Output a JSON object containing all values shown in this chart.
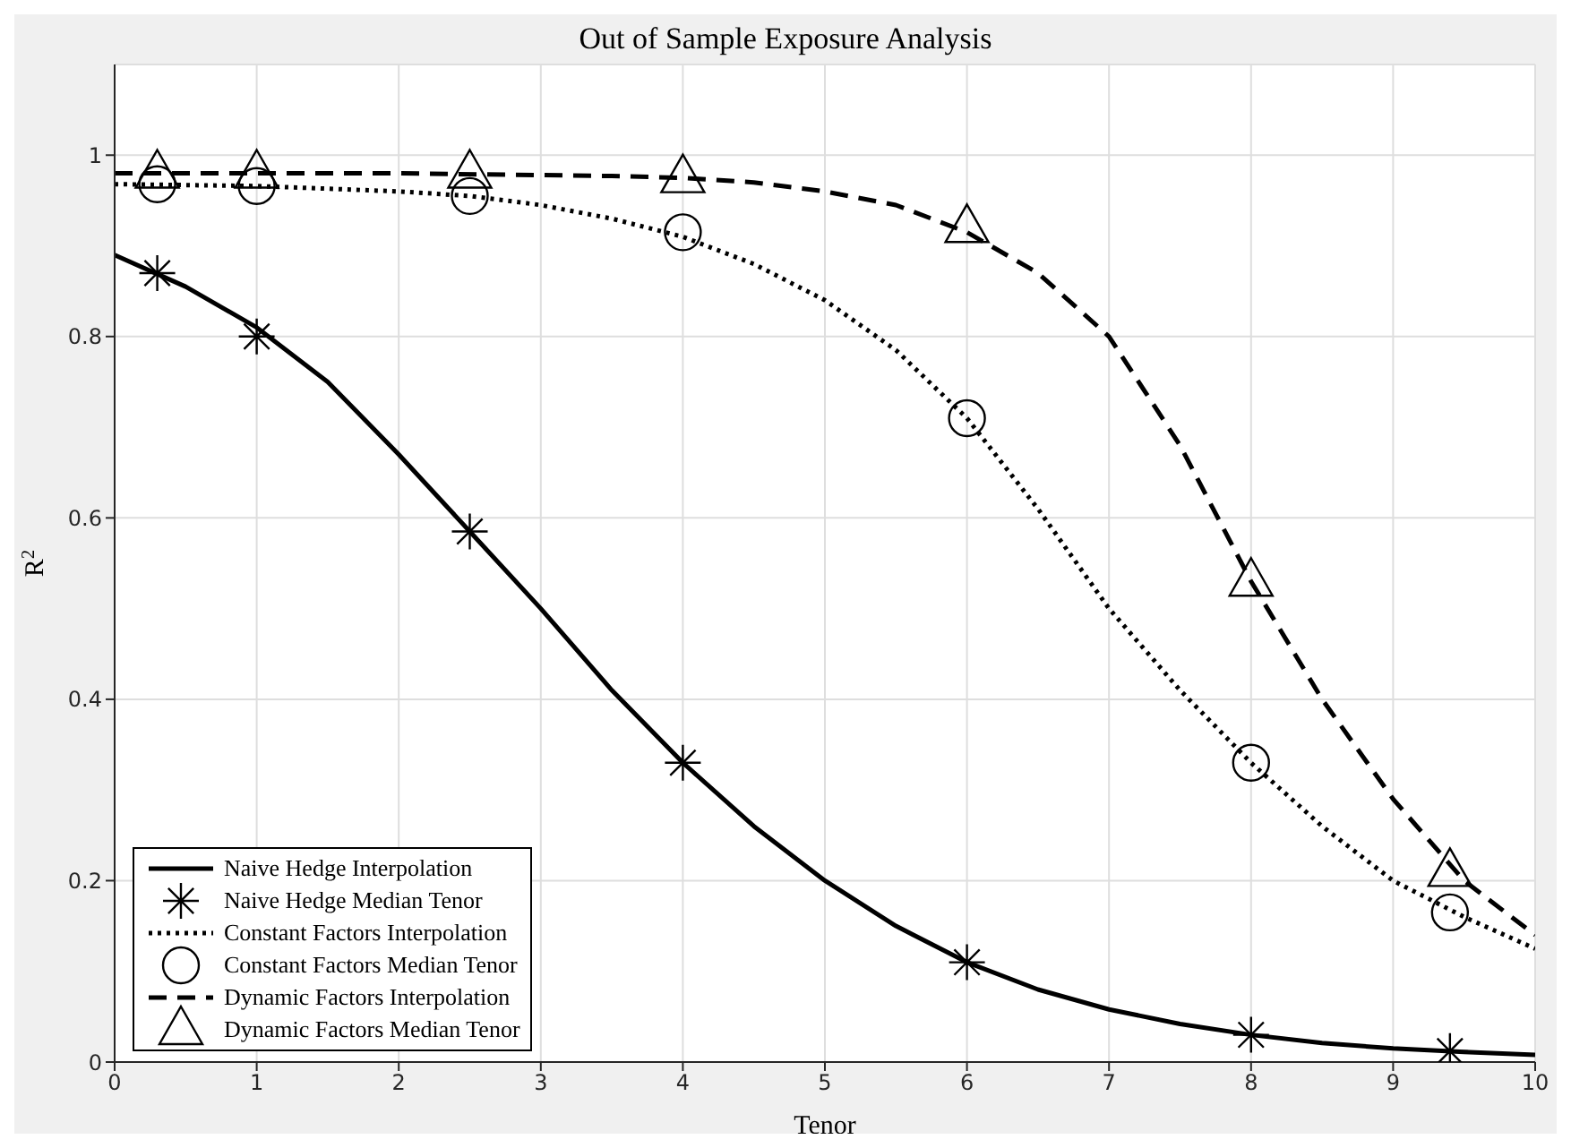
{
  "chart_data": {
    "type": "line",
    "title": "Out of Sample Exposure Analysis",
    "xlabel": "Tenor",
    "ylabel": "R$^{2}$",
    "xlim": [
      0,
      10
    ],
    "xticks": [
      0,
      1,
      2,
      3,
      4,
      5,
      6,
      7,
      8,
      9,
      10
    ],
    "ylim": [
      0,
      1.1
    ],
    "yticks": [
      0,
      0.2,
      0.4,
      0.6,
      0.8,
      1
    ],
    "grid": true,
    "legend": "bottom left",
    "series": [
      {
        "name": "Naive Hedge Interpolation",
        "type": "line",
        "color": "#000000",
        "line_style": "solid",
        "marker": "none",
        "x": [
          0,
          0.5,
          1,
          1.5,
          2,
          2.5,
          3,
          3.5,
          4,
          4.5,
          5,
          5.5,
          6,
          6.5,
          7,
          7.5,
          8,
          8.5,
          9,
          9.5,
          10
        ],
        "values": [
          0.89,
          0.855,
          0.81,
          0.75,
          0.67,
          0.585,
          0.5,
          0.41,
          0.33,
          0.26,
          0.2,
          0.15,
          0.11,
          0.08,
          0.058,
          0.042,
          0.03,
          0.021,
          0.015,
          0.011,
          0.008
        ]
      },
      {
        "name": "Naive Hedge Median Tenor",
        "type": "scatter",
        "color": "#000000",
        "marker": "cross",
        "x": [
          0.3,
          1,
          2.5,
          4,
          6,
          8,
          9.4
        ],
        "values": [
          0.87,
          0.8,
          0.585,
          0.33,
          0.11,
          0.03,
          0.012
        ]
      },
      {
        "name": "Constant Factors Interpolation",
        "type": "line",
        "color": "#000000",
        "line_style": "dotted",
        "marker": "none",
        "x": [
          0,
          0.5,
          1,
          1.5,
          2,
          2.5,
          3,
          3.5,
          4,
          4.5,
          5,
          5.5,
          6,
          6.5,
          7,
          7.5,
          8,
          8.5,
          9,
          9.5,
          10
        ],
        "values": [
          0.968,
          0.967,
          0.966,
          0.963,
          0.96,
          0.955,
          0.945,
          0.93,
          0.91,
          0.88,
          0.84,
          0.785,
          0.71,
          0.61,
          0.5,
          0.41,
          0.33,
          0.26,
          0.2,
          0.16,
          0.125
        ]
      },
      {
        "name": "Constant Factors Median Tenor",
        "type": "scatter",
        "color": "#000000",
        "marker": "circle",
        "x": [
          0.3,
          1,
          2.5,
          4,
          6,
          8,
          9.4
        ],
        "values": [
          0.968,
          0.966,
          0.955,
          0.915,
          0.71,
          0.33,
          0.165
        ]
      },
      {
        "name": "Dynamic Factors Interpolation",
        "type": "line",
        "color": "#000000",
        "line_style": "dashed",
        "marker": "none",
        "x": [
          0,
          1,
          2,
          3,
          3.5,
          4,
          4.5,
          5,
          5.5,
          6,
          6.5,
          7,
          7.5,
          8,
          8.5,
          9,
          9.5,
          10
        ],
        "values": [
          0.98,
          0.98,
          0.98,
          0.978,
          0.977,
          0.975,
          0.97,
          0.96,
          0.945,
          0.915,
          0.87,
          0.8,
          0.68,
          0.53,
          0.4,
          0.29,
          0.2,
          0.14
        ]
      },
      {
        "name": "Dynamic Factors Median Tenor",
        "type": "scatter",
        "color": "#000000",
        "marker": "triangle",
        "x": [
          0.3,
          1,
          2.5,
          4,
          6,
          8,
          9.4
        ],
        "values": [
          0.98,
          0.98,
          0.98,
          0.975,
          0.92,
          0.53,
          0.21
        ]
      }
    ]
  }
}
